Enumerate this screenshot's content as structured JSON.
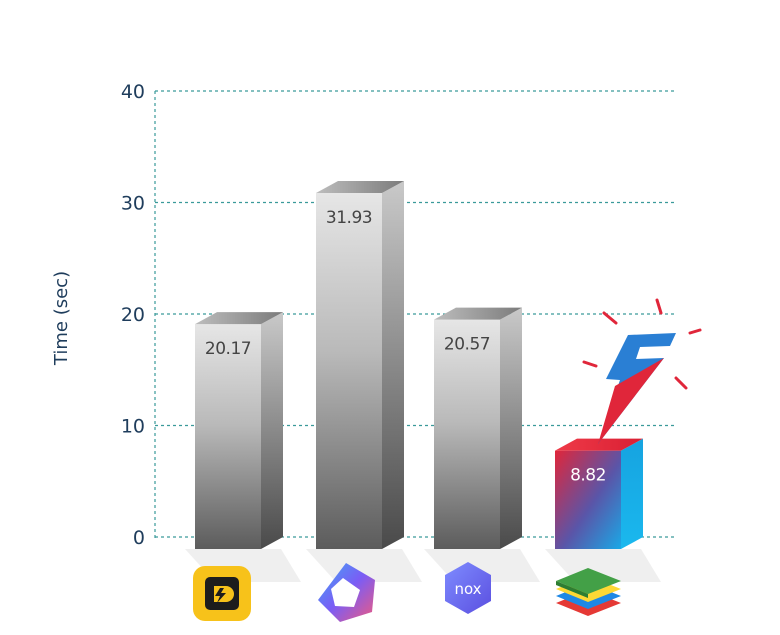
{
  "chart_data": {
    "type": "bar",
    "ylabel": "Time (sec)",
    "ylim": [
      0,
      40
    ],
    "yticks": [
      0,
      10,
      20,
      30,
      40
    ],
    "grid": true,
    "categories": [
      "ldplayer-logo",
      "memu-logo",
      "nox-logo",
      "bluestacks-logo"
    ],
    "values": [
      20.17,
      31.93,
      20.57,
      8.82
    ],
    "value_labels": [
      "20.17",
      "31.93",
      "20.57",
      "8.82"
    ],
    "highlight_index": 3,
    "colors": {
      "axis": "#1f3d5c",
      "grid": "#3a9a9a",
      "bar_light": "#e4e4e4",
      "bar_dark": "#5a5a5a",
      "highlight_red": "#e0263a",
      "highlight_blue": "#19b3e6",
      "bolt_blue": "#2a7fd4",
      "bolt_red": "#e0263a"
    }
  }
}
